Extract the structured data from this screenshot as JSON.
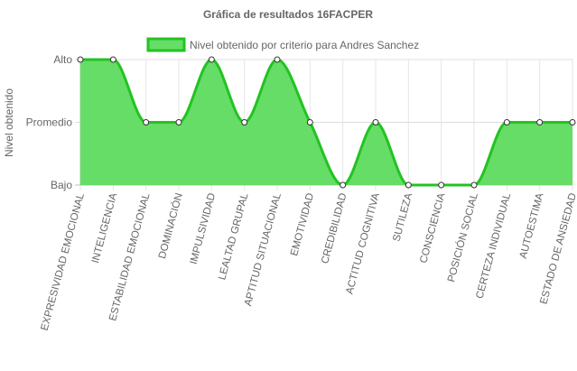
{
  "chart_data": {
    "type": "area",
    "title": "Gráfica de resultados 16FACPER",
    "ylabel": "Nivel obtenido",
    "xlabel": "",
    "y_levels": [
      "Bajo",
      "Promedio",
      "Alto"
    ],
    "ylim": [
      0,
      2
    ],
    "grid": true,
    "legend_position": "top",
    "categories": [
      "EXPRESIVIDAD EMOCIONAL",
      "INTELIGENCIA",
      "ESTABILIDAD EMOCIONAL",
      "DOMINACIÓN",
      "IMPULSIVIDAD",
      "LEALTAD GRUPAL",
      "APTITUD SITUACIONAL",
      "EMOTIVIDAD",
      "CREDIBILIDAD",
      "ACTITUD COGNITIVA",
      "SUTILEZA",
      "CONSCIENCIA",
      "POSICIÓN SOCIAL",
      "CERTEZA INDIVIDUAL",
      "AUTOESTIMA",
      "ESTADO DE ANSIEDAD"
    ],
    "series": [
      {
        "name": "Nivel obtenido por criterio para Andres Sanchez",
        "values": [
          2,
          2,
          1,
          1,
          2,
          1,
          2,
          1,
          0,
          1,
          0,
          0,
          0,
          1,
          1,
          1
        ],
        "line_color": "#22c322",
        "fill_color": "#66dd66"
      }
    ]
  }
}
